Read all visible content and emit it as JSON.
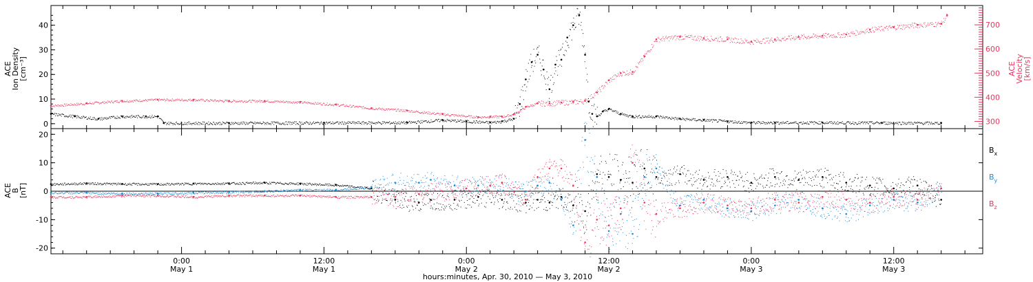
{
  "colors": {
    "black": "#000000",
    "pink": "#e8365e",
    "blue": "#1a8ad8"
  },
  "xlabel": "hours:minutes, Apr. 30, 2010 — May  3, 2010",
  "x_ticks": [
    {
      "hour": 36,
      "time": "0:00",
      "date": "May 1"
    },
    {
      "hour": 48,
      "time": "12:00",
      "date": "May 1"
    },
    {
      "hour": 60,
      "time": "0:00",
      "date": "May 2"
    },
    {
      "hour": 72,
      "time": "12:00",
      "date": "May 2"
    },
    {
      "hour": 84,
      "time": "0:00",
      "date": "May 3"
    },
    {
      "hour": 96,
      "time": "12:00",
      "date": "May 3"
    }
  ],
  "chart_data": [
    {
      "type": "scatter",
      "panel": "top",
      "x_unit": "hours from Apr 30 00:00",
      "xlim": [
        25,
        103.5
      ],
      "ylabel_left": [
        "ACE",
        "Ion Density",
        "[cm⁻³]"
      ],
      "ylabel_right": [
        "ACE",
        "Velocity",
        "[km/s]"
      ],
      "ylim_left": [
        -2,
        48
      ],
      "ylim_right": [
        270,
        780
      ],
      "yticks_left": [
        0,
        10,
        20,
        30,
        40
      ],
      "yticks_right": [
        300,
        400,
        500,
        600,
        700
      ],
      "series": [
        {
          "color": "#000000",
          "axis": "left",
          "x": [
            25,
            27,
            29,
            31,
            33,
            34,
            34.5,
            40,
            48,
            55,
            58,
            60,
            62,
            63,
            64,
            64.5,
            65,
            65.5,
            66,
            66.5,
            67,
            67.5,
            68,
            68.5,
            69,
            69.5,
            70,
            70.3,
            70.6,
            71,
            71.5,
            72,
            73,
            74,
            76,
            78,
            80,
            82,
            84,
            86,
            90,
            95,
            100
          ],
          "y": [
            4,
            3,
            2,
            3,
            3,
            3,
            0.3,
            0.3,
            0.4,
            0.5,
            1.5,
            1,
            0.5,
            1,
            2,
            8,
            18,
            25,
            28,
            22,
            14,
            24,
            26,
            35,
            40,
            44,
            28,
            9,
            4,
            3,
            5,
            6,
            4,
            3,
            3,
            2,
            1.5,
            1,
            0.5,
            0.5,
            0.5,
            0.4,
            0.3
          ]
        },
        {
          "color": "#e8365e",
          "axis": "right",
          "x": [
            25,
            28,
            31,
            34,
            37,
            40,
            43,
            46,
            49,
            52,
            55,
            58,
            61,
            62,
            63,
            64,
            65,
            66,
            67,
            68,
            69,
            70,
            71,
            72,
            73,
            74,
            75,
            76,
            78,
            80,
            82,
            84,
            86,
            88,
            90,
            92,
            94,
            96,
            98,
            100,
            100.5
          ],
          "y": [
            365,
            375,
            385,
            390,
            390,
            385,
            385,
            380,
            370,
            355,
            345,
            330,
            318,
            320,
            320,
            330,
            360,
            375,
            375,
            378,
            380,
            385,
            420,
            470,
            500,
            505,
            570,
            640,
            650,
            645,
            640,
            630,
            640,
            650,
            655,
            660,
            680,
            690,
            700,
            705,
            740
          ]
        }
      ]
    },
    {
      "type": "scatter",
      "panel": "bottom",
      "x_unit": "hours from Apr 30 00:00",
      "xlim": [
        25,
        103.5
      ],
      "ylabel": [
        "ACE",
        "B",
        "[nT]"
      ],
      "ylim": [
        -22,
        22
      ],
      "yticks": [
        -20,
        -10,
        0,
        10,
        20
      ],
      "legend_position": "right",
      "series": [
        {
          "name": "B",
          "sub": "x",
          "color": "#000000",
          "x": [
            25,
            28,
            31,
            34,
            37,
            40,
            43,
            46,
            49,
            52,
            54,
            56,
            57,
            59,
            61,
            63,
            65,
            66,
            67,
            68,
            69,
            70,
            71,
            72,
            73,
            74,
            75,
            76,
            78,
            80,
            82,
            84,
            86,
            88,
            90,
            92,
            94,
            96,
            98,
            100
          ],
          "y": [
            2.5,
            2.8,
            2.6,
            2.5,
            2.7,
            2.8,
            3,
            2.7,
            2.2,
            1,
            -3,
            -4,
            -3,
            -3,
            -2,
            -3,
            -4,
            -3,
            -4,
            -2,
            -5,
            -7,
            6,
            5,
            4,
            3,
            8,
            5,
            6,
            4,
            5,
            3,
            5,
            4,
            5,
            3,
            2,
            1,
            2,
            -3
          ]
        },
        {
          "name": "B",
          "sub": "y",
          "color": "#1a8ad8",
          "x": [
            25,
            28,
            31,
            34,
            37,
            40,
            43,
            46,
            49,
            52,
            54,
            56,
            57,
            59,
            61,
            63,
            64,
            65,
            66,
            67,
            68,
            69,
            70,
            71,
            72,
            73,
            74,
            75,
            76,
            78,
            80,
            82,
            84,
            86,
            88,
            90,
            92,
            94,
            96,
            98,
            100
          ],
          "y": [
            -0.5,
            -0.5,
            -0.8,
            -0.8,
            -0.5,
            -0.3,
            0,
            0.5,
            0.5,
            1.5,
            3,
            3,
            4,
            2,
            2,
            3,
            0,
            0,
            2,
            3,
            -3,
            -12,
            18,
            5,
            -14,
            -8,
            -15,
            5,
            8,
            -5,
            -3,
            -6,
            -7,
            -5,
            -3,
            -6,
            -8,
            -5,
            -3,
            -4,
            1
          ]
        },
        {
          "name": "B",
          "sub": "z",
          "color": "#e8365e",
          "x": [
            25,
            28,
            31,
            34,
            37,
            40,
            43,
            46,
            49,
            52,
            54,
            56,
            58,
            60,
            62,
            63,
            64,
            65,
            66,
            67,
            68,
            69,
            70,
            71,
            72,
            73,
            74,
            75,
            76,
            78,
            80,
            82,
            84,
            86,
            88,
            90,
            92,
            94,
            96,
            98,
            100
          ],
          "y": [
            -2,
            -2,
            -1.5,
            -1.5,
            -2,
            -1.5,
            -1.5,
            -1.5,
            -2,
            -2,
            -2,
            -1,
            0,
            1,
            2,
            3,
            0,
            -3,
            5,
            8,
            8,
            2,
            -18,
            -10,
            -12,
            -6,
            10,
            -4,
            -8,
            -6,
            -4,
            -5,
            -6,
            -3,
            -4,
            -2,
            -3,
            -4,
            -2,
            -3,
            1
          ]
        }
      ]
    }
  ]
}
